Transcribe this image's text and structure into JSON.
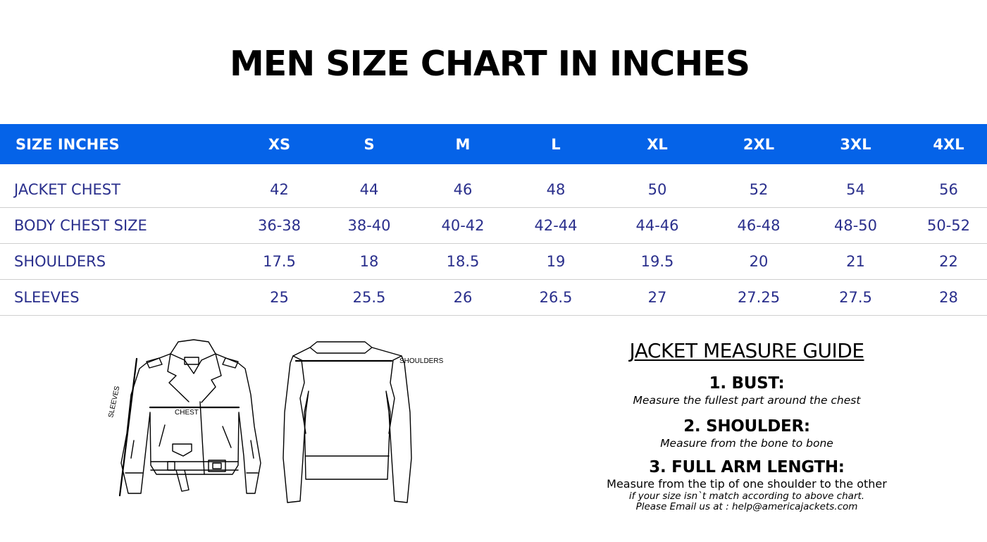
{
  "title": "MEN SIZE CHART IN INCHES",
  "table": {
    "header": [
      "SIZE INCHES",
      "XS",
      "S",
      "M",
      "L",
      "XL",
      "2XL",
      "3XL",
      "4XL"
    ],
    "rows": [
      {
        "label": "JACKET CHEST",
        "values": [
          "42",
          "44",
          "46",
          "48",
          "50",
          "52",
          "54",
          "56"
        ]
      },
      {
        "label": "BODY CHEST SIZE",
        "values": [
          "36-38",
          "38-40",
          "40-42",
          "42-44",
          "44-46",
          "46-48",
          "48-50",
          "50-52"
        ]
      },
      {
        "label": "SHOULDERS",
        "values": [
          "17.5",
          "18",
          "18.5",
          "19",
          "19.5",
          "20",
          "21",
          "22"
        ]
      },
      {
        "label": "SLEEVES",
        "values": [
          "25",
          "25.5",
          "26",
          "26.5",
          "27",
          "27.25",
          "27.5",
          "28"
        ]
      }
    ]
  },
  "diagram": {
    "sleeves_label": "SLEEVES",
    "chest_label": "CHEST",
    "shoulders_label": "SHOULDERS"
  },
  "guide": {
    "title": "JACKET MEASURE GUIDE",
    "items": [
      {
        "heading": "1. BUST:",
        "text": "Measure the fullest part around the chest"
      },
      {
        "heading": "2. SHOULDER:",
        "text": "Measure from the bone to bone"
      },
      {
        "heading": "3. FULL ARM LENGTH:",
        "text": "Measure from the tip of one shoulder to the other"
      }
    ],
    "note_line1": "if your size isn`t match according to above chart.",
    "note_line2": "Please Email us at : help@americajackets.com"
  },
  "colors": {
    "header_bg": "#0563e8",
    "header_text": "#ffffff",
    "body_text": "#2a2f8c",
    "divider": "#cfcfcf"
  }
}
